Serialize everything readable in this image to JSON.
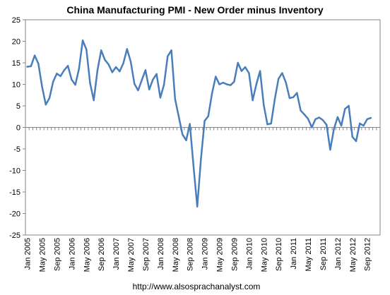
{
  "chart_data": {
    "type": "line",
    "title": "China Manufacturing PMI - New Order minus Inventory",
    "xlabel": "",
    "ylabel": "",
    "ylim": [
      -25,
      25
    ],
    "yticks": [
      "25",
      "20",
      "15",
      "10",
      "5",
      "0",
      "-5",
      "-10",
      "-15",
      "-20",
      "-25"
    ],
    "xtick_labels": [
      "Jan 2005",
      "May 2005",
      "Sep 2005",
      "Jan 2006",
      "May 2006",
      "Sep 2006",
      "Jan 2007",
      "May 2007",
      "Sep 2007",
      "Jan 2008",
      "May 2008",
      "Sep 2008",
      "Jan 2009",
      "May 2009",
      "Sep 2009",
      "Jan 2010",
      "May 2010",
      "Sep 2010",
      "Jan 2011",
      "May 2011",
      "Sep 2011",
      "Jan 2012",
      "May 2012",
      "Sep 2012"
    ],
    "grid": false,
    "legend": "none",
    "line_color": "#4a7ebb",
    "series": [
      {
        "x": [
          "Jan 2005",
          "Feb 2005",
          "Mar 2005",
          "Apr 2005",
          "May 2005",
          "Jun 2005",
          "Jul 2005",
          "Aug 2005",
          "Sep 2005",
          "Oct 2005",
          "Nov 2005",
          "Dec 2005",
          "Jan 2006",
          "Feb 2006",
          "Mar 2006",
          "Apr 2006",
          "May 2006",
          "Jun 2006",
          "Jul 2006",
          "Aug 2006",
          "Sep 2006",
          "Oct 2006",
          "Nov 2006",
          "Dec 2006",
          "Jan 2007",
          "Feb 2007",
          "Mar 2007",
          "Apr 2007",
          "May 2007",
          "Jun 2007",
          "Jul 2007",
          "Aug 2007",
          "Sep 2007",
          "Oct 2007",
          "Nov 2007",
          "Dec 2007",
          "Jan 2008",
          "Feb 2008",
          "Mar 2008",
          "Apr 2008",
          "May 2008",
          "Jun 2008",
          "Jul 2008",
          "Aug 2008",
          "Sep 2008",
          "Oct 2008",
          "Nov 2008",
          "Dec 2008",
          "Jan 2009",
          "Feb 2009",
          "Mar 2009",
          "Apr 2009",
          "May 2009",
          "Jun 2009",
          "Jul 2009",
          "Aug 2009",
          "Sep 2009",
          "Oct 2009",
          "Nov 2009",
          "Dec 2009",
          "Jan 2010",
          "Feb 2010",
          "Mar 2010",
          "Apr 2010",
          "May 2010",
          "Jun 2010",
          "Jul 2010",
          "Aug 2010",
          "Sep 2010",
          "Oct 2010",
          "Nov 2010",
          "Dec 2010",
          "Jan 2011",
          "Feb 2011",
          "Mar 2011",
          "Apr 2011",
          "May 2011",
          "Jun 2011",
          "Jul 2011",
          "Aug 2011",
          "Sep 2011",
          "Oct 2011",
          "Nov 2011",
          "Dec 2011",
          "Jan 2012",
          "Feb 2012",
          "Mar 2012",
          "Apr 2012",
          "May 2012",
          "Jun 2012",
          "Jul 2012",
          "Aug 2012",
          "Sep 2012",
          "Oct 2012"
        ],
        "values": [
          14.1,
          14.2,
          16.7,
          14.8,
          9.5,
          5.3,
          6.8,
          10.6,
          12.5,
          11.9,
          13.3,
          14.3,
          11.1,
          9.9,
          13.6,
          20.2,
          18.1,
          10.3,
          6.3,
          13.3,
          17.9,
          15.7,
          14.6,
          12.8,
          14.0,
          13.0,
          14.9,
          18.2,
          15.3,
          10.1,
          8.6,
          11.0,
          13.3,
          8.8,
          11.1,
          12.4,
          6.9,
          9.9,
          16.5,
          17.9,
          6.6,
          2.5,
          -1.6,
          -3.0,
          0.8,
          -9.0,
          -18.4,
          -7.4,
          1.5,
          2.6,
          7.9,
          11.8,
          10.0,
          10.4,
          10.0,
          9.8,
          10.6,
          15.0,
          13.1,
          14.0,
          12.6,
          6.3,
          10.0,
          13.1,
          5.2,
          0.7,
          0.9,
          6.6,
          11.3,
          12.6,
          10.4,
          6.8,
          7.0,
          8.0,
          3.9,
          3.0,
          2.0,
          0.0,
          1.9,
          2.3,
          1.7,
          0.6,
          -5.2,
          -0.4,
          2.4,
          0.4,
          4.3,
          5.0,
          -2.2,
          -3.2,
          0.9,
          0.4,
          1.9,
          2.2
        ]
      }
    ]
  },
  "footer": {
    "url": "http://www.alsosprachanalyst.com"
  }
}
